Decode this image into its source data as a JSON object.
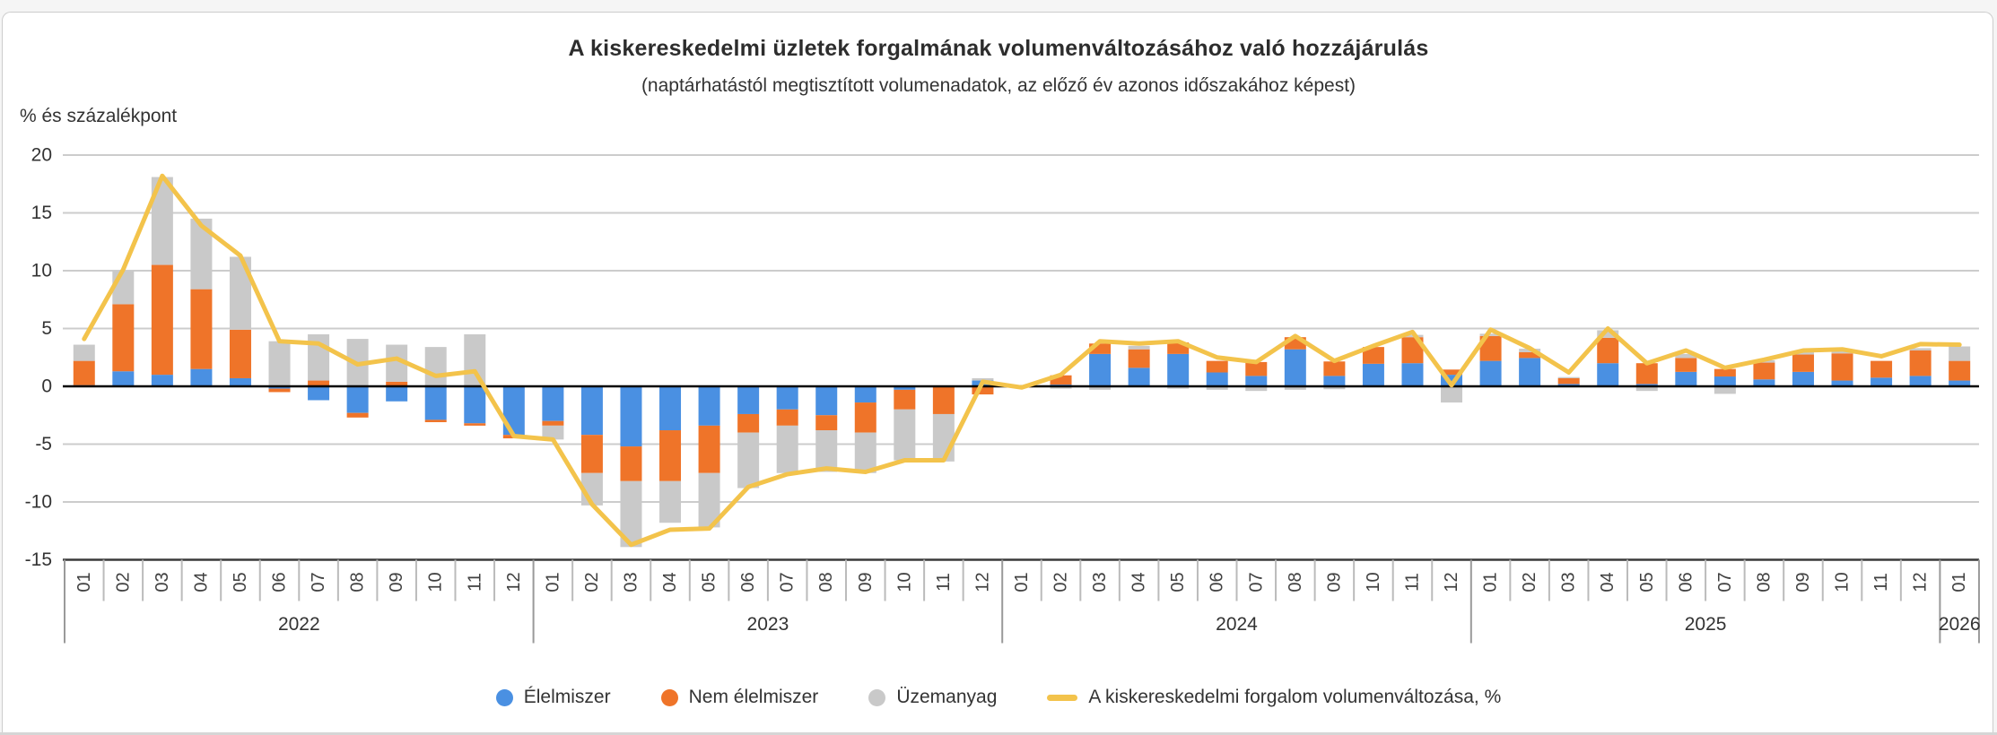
{
  "header": {
    "title": "A kiskereskedelmi üzletek forgalmának volumenváltozásához való hozzájárulás",
    "subtitle": "(naptárhatástól megtisztított volumenadatok, az előző év azonos időszakához képest)"
  },
  "legend": [
    {
      "label": "Élelmiszer",
      "color": "#4A90E2",
      "marker": "circle"
    },
    {
      "label": "Nem élelmiszer",
      "color": "#EF7429",
      "marker": "circle"
    },
    {
      "label": "Üzemanyag",
      "color": "#C9C9C9",
      "marker": "circle"
    },
    {
      "label": "A kiskereskedelmi forgalom volumenváltozása, %",
      "color": "#F3C34B",
      "marker": "line"
    }
  ],
  "chart_data": {
    "type": "bar",
    "subtype": "stacked-bars-with-line",
    "ylabel": "% és százalékpont",
    "ylim": [
      -15,
      20
    ],
    "yticks": [
      20,
      15,
      10,
      5,
      0,
      -5,
      -10,
      -15
    ],
    "grid": true,
    "legend_position": "bottom",
    "years": [
      {
        "label": "2022",
        "months": [
          "01",
          "02",
          "03",
          "04",
          "05",
          "06",
          "07",
          "08",
          "09",
          "10",
          "11",
          "12"
        ]
      },
      {
        "label": "2023",
        "months": [
          "01",
          "02",
          "03",
          "04",
          "05",
          "06",
          "07",
          "08",
          "09",
          "10",
          "11",
          "12"
        ]
      },
      {
        "label": "2024",
        "months": [
          "01",
          "02",
          "03",
          "04",
          "05",
          "06",
          "07",
          "08",
          "09",
          "10",
          "11",
          "12"
        ]
      },
      {
        "label": "2025",
        "months": [
          "01",
          "02",
          "03",
          "04",
          "05",
          "06",
          "07",
          "08",
          "09",
          "10",
          "11",
          "12"
        ]
      },
      {
        "label": "2026",
        "months": [
          "01"
        ]
      }
    ],
    "series": [
      {
        "name": "Élelmiszer",
        "type": "bar",
        "color": "#4A90E2",
        "values": [
          0.1,
          1.3,
          1.0,
          1.5,
          0.7,
          -0.2,
          -1.2,
          -2.3,
          -1.3,
          -2.9,
          -3.2,
          -4.2,
          -3.0,
          -4.2,
          -5.2,
          -3.8,
          -3.4,
          -2.4,
          -2.0,
          -2.5,
          -1.4,
          -0.3,
          0.0,
          0.5,
          0.0,
          0.15,
          2.8,
          1.6,
          2.8,
          1.2,
          0.9,
          3.2,
          0.9,
          1.95,
          2.0,
          1.0,
          2.2,
          2.45,
          0.2,
          2.0,
          0.2,
          1.25,
          0.85,
          0.6,
          1.25,
          0.5,
          0.75,
          0.9,
          0.5
        ]
      },
      {
        "name": "Nem élelmiszer",
        "type": "bar",
        "color": "#EF7429",
        "values": [
          2.1,
          5.8,
          9.5,
          6.9,
          4.2,
          -0.3,
          0.5,
          -0.4,
          0.4,
          -0.2,
          -0.2,
          -0.3,
          -0.4,
          -3.3,
          -3.0,
          -4.4,
          -4.1,
          -1.6,
          -1.4,
          -1.3,
          -2.6,
          -1.7,
          -2.4,
          -0.7,
          -0.1,
          0.8,
          0.9,
          1.6,
          1.0,
          1.0,
          1.2,
          1.05,
          1.25,
          1.45,
          2.25,
          0.45,
          2.15,
          0.5,
          0.5,
          2.2,
          1.8,
          1.2,
          0.65,
          1.45,
          1.5,
          2.35,
          1.45,
          2.2,
          1.7
        ]
      },
      {
        "name": "Üzemanyag",
        "type": "bar",
        "color": "#C9C9C9",
        "values": [
          1.4,
          2.9,
          7.6,
          6.1,
          6.3,
          3.9,
          4.0,
          4.1,
          3.2,
          3.4,
          4.5,
          0.0,
          -1.2,
          -2.8,
          -5.7,
          -3.6,
          -4.7,
          -4.8,
          -4.1,
          -3.6,
          -3.5,
          -4.4,
          -4.1,
          0.2,
          0.0,
          -0.2,
          -0.3,
          0.3,
          -0.2,
          -0.3,
          -0.4,
          -0.3,
          -0.25,
          0.0,
          0.2,
          -1.4,
          0.2,
          0.3,
          0.1,
          0.65,
          -0.4,
          0.35,
          -0.65,
          0.2,
          0.2,
          0.2,
          0.0,
          0.2,
          1.25
        ]
      },
      {
        "name": "A kiskereskedelmi forgalom volumenváltozása, %",
        "type": "line",
        "color": "#F3C34B",
        "values": [
          4.1,
          10.1,
          18.2,
          13.9,
          11.3,
          3.9,
          3.7,
          1.9,
          2.4,
          0.9,
          1.3,
          -4.3,
          -4.6,
          -10.2,
          -13.7,
          -12.4,
          -12.3,
          -8.7,
          -7.6,
          -7.1,
          -7.4,
          -6.4,
          -6.4,
          0.4,
          -0.1,
          1.0,
          3.9,
          3.7,
          3.9,
          2.5,
          2.1,
          4.35,
          2.2,
          3.5,
          4.7,
          0.1,
          4.9,
          3.3,
          1.2,
          5.0,
          2.0,
          3.1,
          1.6,
          2.3,
          3.1,
          3.2,
          2.6,
          3.65,
          3.6
        ]
      }
    ]
  }
}
